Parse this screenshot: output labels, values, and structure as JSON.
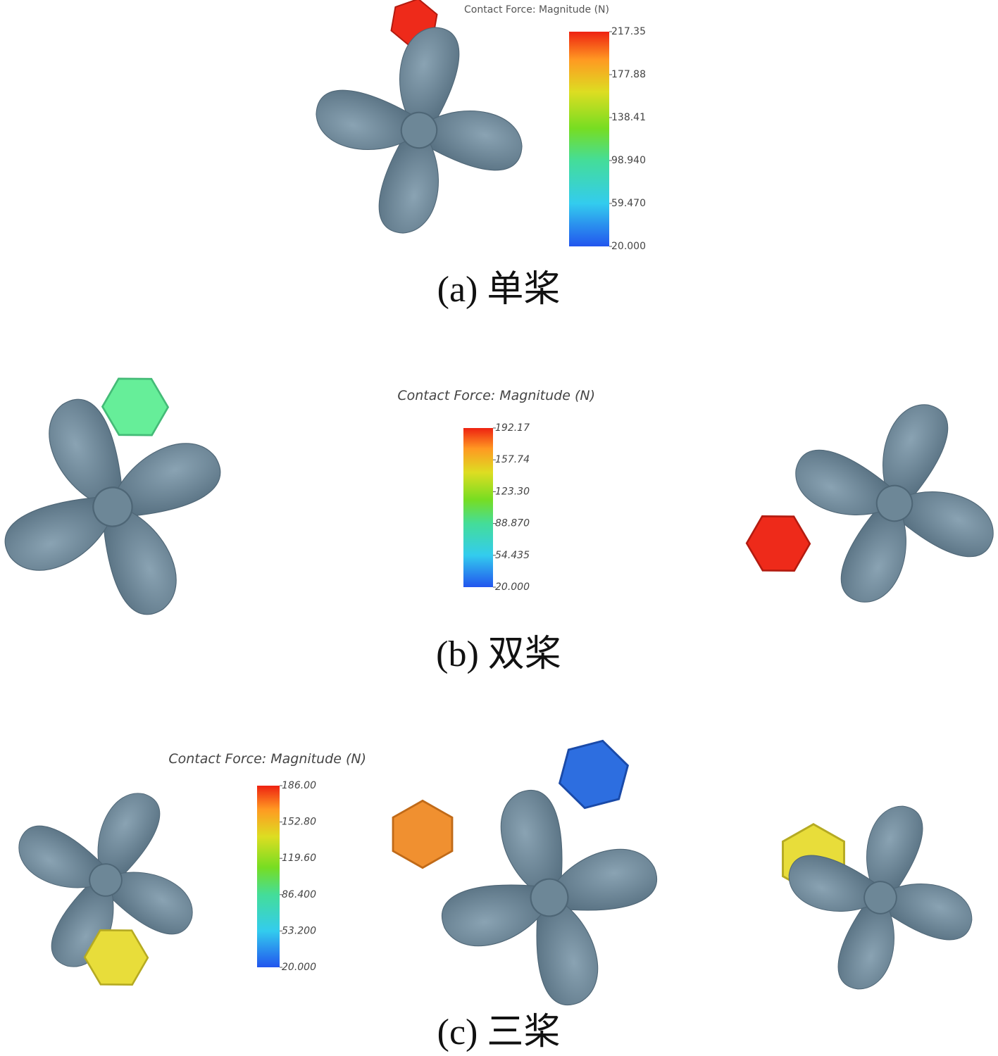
{
  "panels": [
    {
      "colorbar": {
        "title": "Contact Force: Magnitude (N)",
        "ticks": [
          217.35,
          177.88,
          138.41,
          {
            "value": 98.94,
            "label": "98.940"
          },
          {
            "value": 59.47,
            "label": "59.470"
          },
          {
            "value": 20,
            "label": "20.000"
          }
        ]
      },
      "caption": "(a) 单桨"
    },
    {
      "colorbar": {
        "title": "Contact Force: Magnitude (N)",
        "ticks": [
          192.17,
          157.74,
          {
            "value": 123.3,
            "label": "123.30"
          },
          {
            "value": 88.87,
            "label": "88.870"
          },
          54.435,
          {
            "value": 20,
            "label": "20.000"
          }
        ]
      },
      "caption": "(b) 双桨"
    },
    {
      "colorbar": {
        "title": "Contact Force: Magnitude (N)",
        "ticks": [
          {
            "value": 186,
            "label": "186.00"
          },
          {
            "value": 152.8,
            "label": "152.80"
          },
          {
            "value": 119.6,
            "label": "119.60"
          },
          {
            "value": 86.4,
            "label": "86.400"
          },
          {
            "value": 53.2,
            "label": "53.200"
          },
          {
            "value": 20,
            "label": "20.000"
          }
        ]
      },
      "caption": "(c) 三桨"
    }
  ]
}
